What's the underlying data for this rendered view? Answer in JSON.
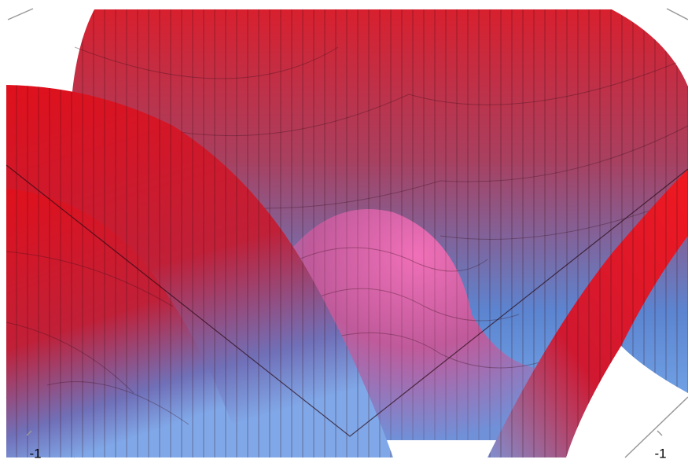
{
  "chart_data": {
    "type": "surface",
    "xticks": [
      -1
    ],
    "yticks": [
      -1
    ]
  }
}
